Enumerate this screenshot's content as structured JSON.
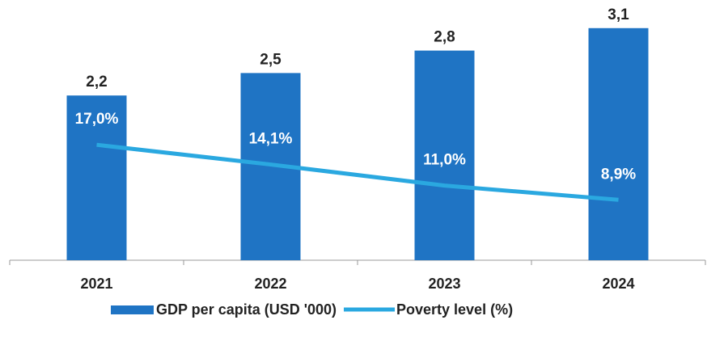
{
  "chart_data": {
    "type": "bar",
    "categories": [
      "2021",
      "2022",
      "2023",
      "2024"
    ],
    "series": [
      {
        "name": "GDP per capita (USD '000)",
        "type": "bar",
        "color": "#1f74c4",
        "values": [
          2.2,
          2.5,
          2.8,
          3.1
        ],
        "value_labels": [
          "2,2",
          "2,5",
          "2,8",
          "3,1"
        ]
      },
      {
        "name": "Poverty level (%)",
        "type": "line",
        "axis": "y2",
        "color": "#2aa8e0",
        "values": [
          17.0,
          14.1,
          11.0,
          8.9
        ],
        "value_labels": [
          "17,0%",
          "14,1%",
          "11,0%",
          "8,9%"
        ]
      }
    ],
    "ylim": [
      0,
      3.4
    ],
    "y2lim": [
      0,
      37.5
    ],
    "grid": false
  }
}
